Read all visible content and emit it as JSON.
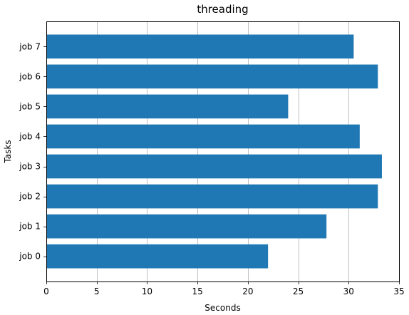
{
  "chart_data": {
    "type": "bar",
    "orientation": "horizontal",
    "title": "threading",
    "xlabel": "Seconds",
    "ylabel": "Tasks",
    "categories": [
      "job 0",
      "job 1",
      "job 2",
      "job 3",
      "job 4",
      "job 5",
      "job 6",
      "job 7"
    ],
    "values": [
      22.0,
      27.8,
      32.9,
      33.3,
      31.1,
      24.0,
      32.9,
      30.5
    ],
    "xlim": [
      0,
      35
    ],
    "xticks": [
      0,
      5,
      10,
      15,
      20,
      25,
      30,
      35
    ],
    "grid": {
      "x": true,
      "y": false
    },
    "bar_color": "#1f77b4",
    "grid_color": "#b0b0b0"
  }
}
